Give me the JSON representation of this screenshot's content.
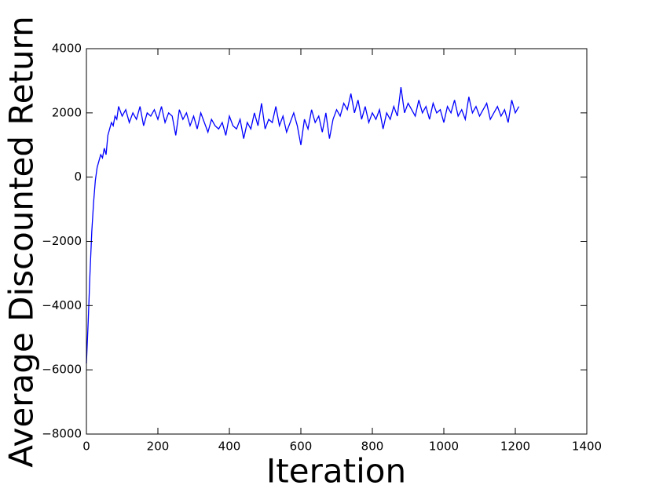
{
  "chart_data": {
    "type": "line",
    "xlabel": "Iteration",
    "ylabel": "Average Discounted Return",
    "xlim": [
      0,
      1400
    ],
    "xticks": [
      0,
      200,
      400,
      600,
      800,
      1000,
      1200,
      1400
    ],
    "ylim": [
      -8000,
      4000
    ],
    "yticks": [
      {
        "value": -8000,
        "label": "−8000"
      },
      {
        "value": -6000,
        "label": "−6000"
      },
      {
        "value": -4000,
        "label": "−4000"
      },
      {
        "value": -2000,
        "label": "−2000"
      },
      0,
      2000,
      4000
    ],
    "grid": false,
    "series": [
      {
        "color": "#0000ff",
        "x": [
          0,
          5,
          10,
          15,
          20,
          25,
          30,
          35,
          40,
          45,
          50,
          55,
          60,
          65,
          70,
          75,
          80,
          85,
          90,
          100,
          110,
          120,
          130,
          140,
          150,
          160,
          170,
          180,
          190,
          200,
          210,
          220,
          230,
          240,
          250,
          260,
          270,
          280,
          290,
          300,
          310,
          320,
          330,
          340,
          350,
          360,
          370,
          380,
          390,
          400,
          410,
          420,
          430,
          440,
          450,
          460,
          470,
          480,
          490,
          500,
          510,
          520,
          530,
          540,
          550,
          560,
          570,
          580,
          590,
          600,
          610,
          620,
          630,
          640,
          650,
          660,
          670,
          680,
          690,
          700,
          710,
          720,
          730,
          740,
          750,
          760,
          770,
          780,
          790,
          800,
          810,
          820,
          830,
          840,
          850,
          860,
          870,
          880,
          890,
          900,
          910,
          920,
          930,
          940,
          950,
          960,
          970,
          980,
          990,
          1000,
          1010,
          1020,
          1030,
          1040,
          1050,
          1060,
          1070,
          1080,
          1090,
          1100,
          1110,
          1120,
          1130,
          1140,
          1150,
          1160,
          1170,
          1180,
          1190,
          1200,
          1210
        ],
        "values": [
          -5800,
          -4500,
          -3000,
          -1700,
          -800,
          -100,
          300,
          500,
          700,
          600,
          900,
          700,
          1300,
          1500,
          1700,
          1600,
          1900,
          1800,
          2200,
          1900,
          2100,
          1700,
          2000,
          1800,
          2200,
          1600,
          2000,
          1900,
          2100,
          1800,
          2200,
          1700,
          2000,
          1900,
          1300,
          2100,
          1800,
          2000,
          1600,
          1900,
          1500,
          2000,
          1700,
          1400,
          1800,
          1600,
          1500,
          1700,
          1300,
          1900,
          1600,
          1500,
          1800,
          1200,
          1700,
          1500,
          2000,
          1600,
          2300,
          1500,
          1800,
          1700,
          2200,
          1600,
          1900,
          1400,
          1700,
          2000,
          1600,
          1000,
          1800,
          1500,
          2100,
          1700,
          1900,
          1400,
          2000,
          1200,
          1800,
          2100,
          1900,
          2300,
          2100,
          2600,
          2000,
          2400,
          1800,
          2200,
          1700,
          2000,
          1800,
          2100,
          1500,
          2000,
          1800,
          2200,
          1900,
          2800,
          2000,
          2300,
          2100,
          1900,
          2400,
          2000,
          2200,
          1800,
          2300,
          2000,
          2100,
          1700,
          2200,
          2000,
          2400,
          1900,
          2100,
          1800,
          2500,
          2000,
          2200,
          1900,
          2100,
          2300,
          1800,
          2000,
          2200,
          1900,
          2100,
          1700,
          2400,
          2000,
          2200
        ]
      }
    ]
  }
}
